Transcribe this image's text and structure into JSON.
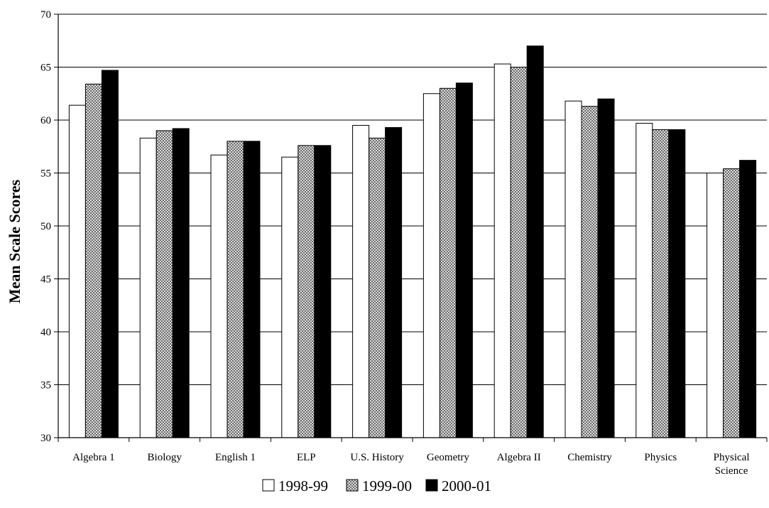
{
  "chart_data": {
    "type": "bar",
    "title": "",
    "xlabel": "",
    "ylabel": "Mean Scale Scores",
    "ylim": [
      30,
      70
    ],
    "ytick_step": 5,
    "grid": true,
    "legend_position": "bottom",
    "categories": [
      "Algebra 1",
      "Biology",
      "English 1",
      "ELP",
      "U.S. History",
      "Geometry",
      "Algebra II",
      "Chemistry",
      "Physics",
      "Physical Science"
    ],
    "series": [
      {
        "name": "1998-99",
        "fill": "white",
        "values": [
          61.4,
          58.3,
          56.7,
          56.5,
          59.5,
          62.5,
          65.3,
          61.8,
          59.7,
          55.0
        ]
      },
      {
        "name": "1999-00",
        "fill": "hatched",
        "values": [
          63.4,
          59.0,
          58.0,
          57.6,
          58.3,
          63.0,
          65.0,
          61.3,
          59.1,
          55.4
        ]
      },
      {
        "name": "2000-01",
        "fill": "black",
        "values": [
          64.7,
          59.2,
          58.0,
          57.6,
          59.3,
          63.5,
          67.0,
          62.0,
          59.1,
          56.2
        ]
      }
    ]
  }
}
